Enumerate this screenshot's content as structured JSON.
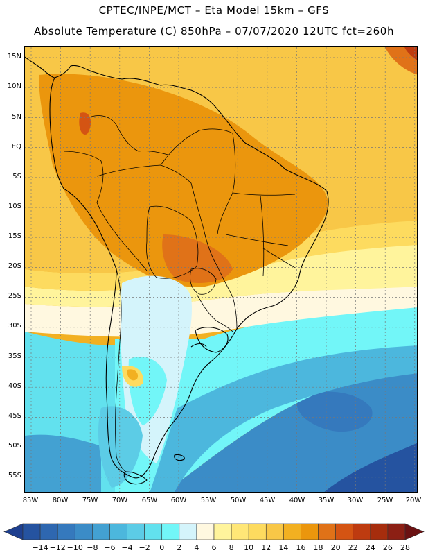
{
  "header": {
    "line1": "CPTEC/INPE/MCT  –   Eta Model 15km – GFS",
    "line2": "Absolute Temperature (C) 850hPa – 07/07/2020 12UTC fct=260h"
  },
  "map": {
    "latitude_labels": [
      "15N",
      "10N",
      "5N",
      "EQ",
      "5S",
      "10S",
      "15S",
      "20S",
      "25S",
      "30S",
      "35S",
      "40S",
      "45S",
      "50S",
      "55S"
    ],
    "longitude_labels": [
      "85W",
      "80W",
      "75W",
      "70W",
      "65W",
      "60W",
      "55W",
      "50W",
      "45W",
      "40W",
      "35W",
      "30W",
      "25W",
      "20W"
    ],
    "temperature_field_C": {
      "north_tropics": 20,
      "amazon_interior": 21,
      "colombia_andes_hotspot": 26,
      "paraguay_bolivia_chaco": 22,
      "southern_brazil_coast": 14,
      "subtropical_front_30S": 6,
      "patagonia": 0,
      "southern_ocean_50S_60S": -12,
      "atlantic_cold_pocket_45S_25W": -10
    }
  },
  "colorbar": {
    "labels": [
      "−14",
      "−12",
      "−10",
      "−8",
      "−6",
      "−4",
      "−2",
      "0",
      "2",
      "4",
      "6",
      "8",
      "10",
      "12",
      "14",
      "16",
      "18",
      "20",
      "22",
      "24",
      "26",
      "28"
    ],
    "colors": [
      "#1e3f8f",
      "#2553a0",
      "#2e67b0",
      "#3579bd",
      "#3b8cc7",
      "#43a1d2",
      "#4cb7dd",
      "#5ccce6",
      "#62e1ee",
      "#72f6f8",
      "#d4f4fb",
      "#fff8e0",
      "#fff49c",
      "#ffe777",
      "#fddb5f",
      "#f8c747",
      "#f2b021",
      "#eb960d",
      "#e07218",
      "#d45413",
      "#be3b10",
      "#a62d0d",
      "#8c1f14",
      "#6b1112"
    ]
  }
}
